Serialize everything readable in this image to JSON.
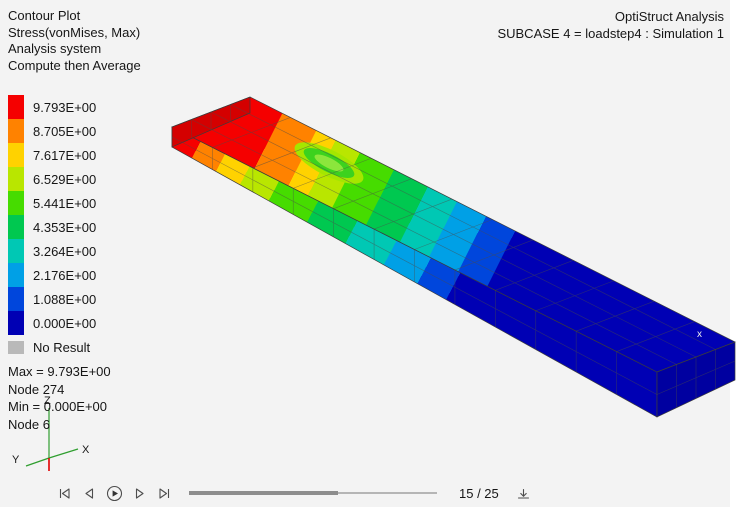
{
  "header": {
    "plot_info": [
      "Contour Plot",
      "Stress(vonMises, Max)",
      "Analysis system",
      "Compute then Average"
    ],
    "analysis_title": "OptiStruct Analysis",
    "subcase": "SUBCASE 4 = loadstep4 : Simulation 1"
  },
  "legend": {
    "entries": [
      {
        "label": "9.793E+00",
        "color": "#f50000"
      },
      {
        "label": "8.705E+00",
        "color": "#ff8200"
      },
      {
        "label": "7.617E+00",
        "color": "#ffd200"
      },
      {
        "label": "6.529E+00",
        "color": "#b9e600"
      },
      {
        "label": "5.441E+00",
        "color": "#46dc00"
      },
      {
        "label": "4.353E+00",
        "color": "#00c850"
      },
      {
        "label": "3.264E+00",
        "color": "#00c8b4"
      },
      {
        "label": "2.176E+00",
        "color": "#00a0e6"
      },
      {
        "label": "1.088E+00",
        "color": "#0046dc"
      },
      {
        "label": "0.000E+00",
        "color": "#0000b4"
      }
    ],
    "no_result": {
      "label": "No Result",
      "color": "#b9b9b9"
    },
    "max_line": "Max = 9.793E+00",
    "max_node": "Node 274",
    "min_line": "Min = 0.000E+00",
    "min_node": "Node 6"
  },
  "triad": {
    "x": "X",
    "y": "Y",
    "z": "Z",
    "axis_color": "#2f9e2f",
    "origin_color": "#e10000"
  },
  "viewport": {
    "min_marker": "x"
  },
  "animation": {
    "frame_label": "15 / 25",
    "current_frame": 15,
    "total_frames": 25,
    "progress_percent": 60
  }
}
